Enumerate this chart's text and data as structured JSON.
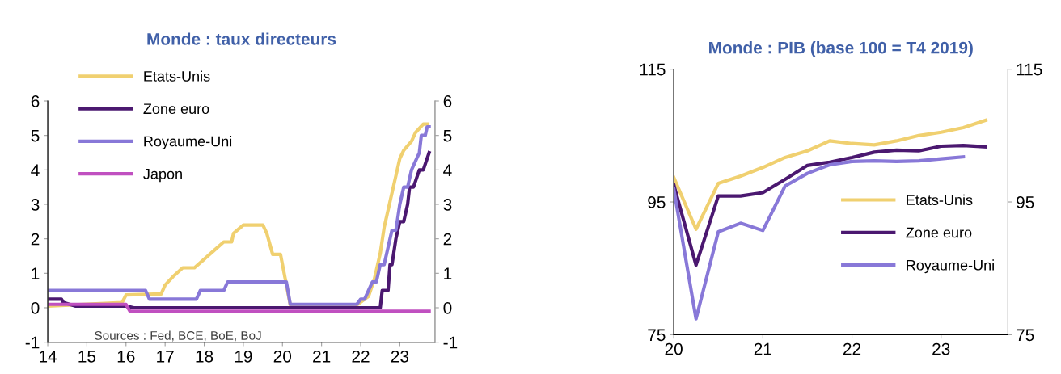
{
  "chart_data": [
    {
      "type": "line",
      "title": "Monde : taux directeurs",
      "xlim": [
        14,
        23.9
      ],
      "xticks": [
        14,
        15,
        16,
        17,
        18,
        19,
        20,
        21,
        22,
        23
      ],
      "ylim": [
        -1,
        6
      ],
      "yticks": [
        -1,
        0,
        1,
        2,
        3,
        4,
        5,
        6
      ],
      "y2lim": [
        -1,
        6
      ],
      "y2ticks": [
        -1,
        0,
        1,
        2,
        3,
        4,
        5,
        6
      ],
      "legend": "top left",
      "grid": false,
      "annotations": [
        "Sources : Fed, BCE, BoE, BoJ"
      ],
      "series": [
        {
          "name": "Etats-Unis",
          "color": "#f0d070",
          "x": [
            14.0,
            15.9,
            16.0,
            16.9,
            17.0,
            17.2,
            17.45,
            17.75,
            18.0,
            18.25,
            18.5,
            18.7,
            18.75,
            19.0,
            19.5,
            19.6,
            19.75,
            19.95,
            20.2,
            21.9,
            22.2,
            22.35,
            22.5,
            22.6,
            22.75,
            22.9,
            23.0,
            23.1,
            23.3,
            23.4,
            23.6,
            23.7
          ],
          "values": [
            0.05,
            0.15,
            0.37,
            0.4,
            0.66,
            0.9,
            1.16,
            1.16,
            1.41,
            1.66,
            1.91,
            1.91,
            2.16,
            2.4,
            2.4,
            2.16,
            1.55,
            1.55,
            0.08,
            0.08,
            0.33,
            0.83,
            1.58,
            2.33,
            3.08,
            3.83,
            4.33,
            4.57,
            4.83,
            5.08,
            5.33,
            5.33
          ]
        },
        {
          "name": "Zone euro",
          "color": "#4b1870",
          "x": [
            14.0,
            14.35,
            14.4,
            14.7,
            16.0,
            16.2,
            22.5,
            22.55,
            22.7,
            22.75,
            22.8,
            22.9,
            23.0,
            23.1,
            23.2,
            23.25,
            23.35,
            23.5,
            23.6,
            23.75
          ],
          "values": [
            0.25,
            0.25,
            0.15,
            0.05,
            0.05,
            0.0,
            0.0,
            0.5,
            0.5,
            1.25,
            1.25,
            2.0,
            2.5,
            2.5,
            3.0,
            3.5,
            3.5,
            4.0,
            4.0,
            4.5
          ]
        },
        {
          "name": "Royaume-Uni",
          "color": "#8878d8",
          "x": [
            14.0,
            16.5,
            16.6,
            17.8,
            17.9,
            18.5,
            18.6,
            20.1,
            20.2,
            21.9,
            22.0,
            22.1,
            22.2,
            22.3,
            22.4,
            22.5,
            22.6,
            22.7,
            22.8,
            22.9,
            23.0,
            23.1,
            23.2,
            23.3,
            23.4,
            23.5,
            23.55,
            23.65,
            23.7,
            23.75
          ],
          "values": [
            0.5,
            0.5,
            0.25,
            0.25,
            0.5,
            0.5,
            0.75,
            0.75,
            0.1,
            0.1,
            0.25,
            0.25,
            0.5,
            0.75,
            0.75,
            1.25,
            1.25,
            1.75,
            2.25,
            2.25,
            3.0,
            3.5,
            3.5,
            4.0,
            4.25,
            4.5,
            5.0,
            5.0,
            5.25,
            5.25
          ]
        },
        {
          "name": "Japon",
          "color": "#c050c0",
          "x": [
            14.0,
            16.0,
            16.1,
            23.75
          ],
          "values": [
            0.1,
            0.1,
            -0.1,
            -0.1
          ]
        }
      ]
    },
    {
      "type": "line",
      "title": "Monde : PIB (base 100 = T4 2019)",
      "xlim": [
        20,
        23.75
      ],
      "xticks": [
        20,
        21,
        22,
        23
      ],
      "ylim": [
        75,
        115
      ],
      "yticks": [
        75,
        95,
        115
      ],
      "y2lim": [
        75,
        115
      ],
      "y2ticks": [
        75,
        95,
        115
      ],
      "legend": "right",
      "grid": false,
      "series": [
        {
          "name": "Etats-Unis",
          "color": "#f0d070",
          "x": [
            20.0,
            20.25,
            20.5,
            20.75,
            21.0,
            21.25,
            21.5,
            21.75,
            22.0,
            22.25,
            22.5,
            22.75,
            23.0,
            23.25,
            23.5
          ],
          "values": [
            98.7,
            90.9,
            97.8,
            98.9,
            100.2,
            101.7,
            102.7,
            104.2,
            103.8,
            103.6,
            104.2,
            105.0,
            105.5,
            106.2,
            107.3
          ]
        },
        {
          "name": "Zone euro",
          "color": "#4b1870",
          "x": [
            20.0,
            20.25,
            20.5,
            20.75,
            21.0,
            21.25,
            21.5,
            21.75,
            22.0,
            22.25,
            22.5,
            22.75,
            23.0,
            23.25,
            23.5
          ],
          "values": [
            97.6,
            85.5,
            95.9,
            95.9,
            96.4,
            98.4,
            100.5,
            101.0,
            101.7,
            102.5,
            102.8,
            102.7,
            103.4,
            103.5,
            103.3
          ]
        },
        {
          "name": "Royaume-Uni",
          "color": "#8878d8",
          "x": [
            20.0,
            20.25,
            20.5,
            20.75,
            21.0,
            21.25,
            21.5,
            21.75,
            22.0,
            22.25,
            22.5,
            22.75,
            23.0,
            23.25
          ],
          "values": [
            97.0,
            77.4,
            90.5,
            91.8,
            90.7,
            97.4,
            99.3,
            100.6,
            101.1,
            101.2,
            101.1,
            101.2,
            101.5,
            101.8
          ]
        }
      ]
    }
  ]
}
